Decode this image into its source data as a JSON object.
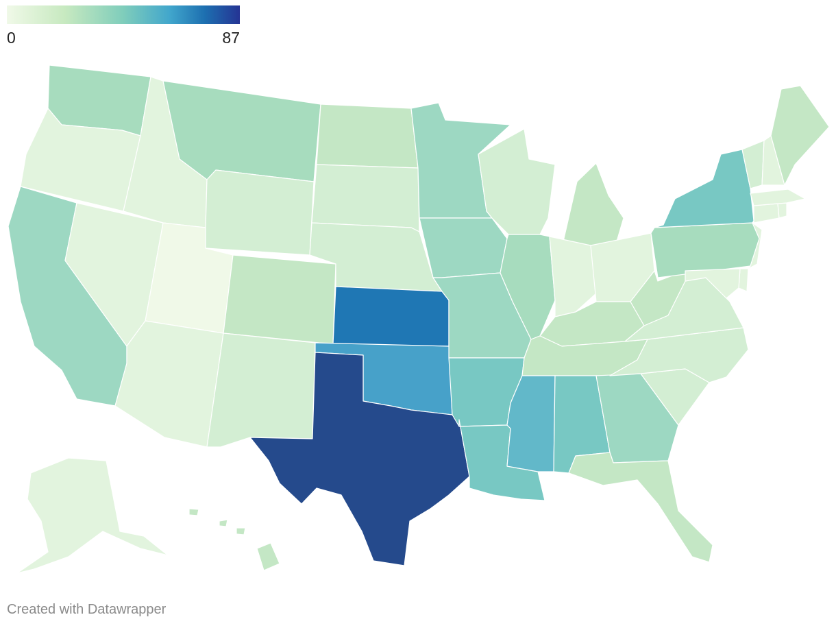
{
  "legend": {
    "min_label": "0",
    "max_label": "87"
  },
  "credit": "Created with Datawrapper",
  "colors": {
    "c1": "#f0f9e8",
    "c2": "#e2f4de",
    "c3": "#d3eed3",
    "c4": "#c4e7c5",
    "c5": "#a7dcbe",
    "c6": "#9dd8c2",
    "c7": "#78c8c3",
    "c8": "#62b8c9",
    "c9": "#47a1c9",
    "c10": "#1f77b4",
    "c11": "#254a8c",
    "border": "#ffffff"
  },
  "states": [
    {
      "name": "WA",
      "color_key": "c5"
    },
    {
      "name": "OR",
      "color_key": "c2"
    },
    {
      "name": "CA",
      "color_key": "c6"
    },
    {
      "name": "NV",
      "color_key": "c2"
    },
    {
      "name": "ID",
      "color_key": "c2"
    },
    {
      "name": "MT",
      "color_key": "c5"
    },
    {
      "name": "WY",
      "color_key": "c3"
    },
    {
      "name": "UT",
      "color_key": "c1"
    },
    {
      "name": "AZ",
      "color_key": "c2"
    },
    {
      "name": "CO",
      "color_key": "c4"
    },
    {
      "name": "NM",
      "color_key": "c3"
    },
    {
      "name": "ND",
      "color_key": "c4"
    },
    {
      "name": "SD",
      "color_key": "c3"
    },
    {
      "name": "NE",
      "color_key": "c3"
    },
    {
      "name": "KS",
      "color_key": "c10"
    },
    {
      "name": "OK",
      "color_key": "c9"
    },
    {
      "name": "TX",
      "color_key": "c11"
    },
    {
      "name": "MN",
      "color_key": "c6"
    },
    {
      "name": "IA",
      "color_key": "c6"
    },
    {
      "name": "MO",
      "color_key": "c6"
    },
    {
      "name": "AR",
      "color_key": "c7"
    },
    {
      "name": "LA",
      "color_key": "c7"
    },
    {
      "name": "WI",
      "color_key": "c3"
    },
    {
      "name": "IL",
      "color_key": "c5"
    },
    {
      "name": "MI",
      "color_key": "c4"
    },
    {
      "name": "IN",
      "color_key": "c2"
    },
    {
      "name": "OH",
      "color_key": "c2"
    },
    {
      "name": "KY",
      "color_key": "c4"
    },
    {
      "name": "TN",
      "color_key": "c4"
    },
    {
      "name": "MS",
      "color_key": "c8"
    },
    {
      "name": "AL",
      "color_key": "c7"
    },
    {
      "name": "GA",
      "color_key": "c6"
    },
    {
      "name": "FL",
      "color_key": "c4"
    },
    {
      "name": "SC",
      "color_key": "c3"
    },
    {
      "name": "NC",
      "color_key": "c3"
    },
    {
      "name": "VA",
      "color_key": "c3"
    },
    {
      "name": "WV",
      "color_key": "c4"
    },
    {
      "name": "PA",
      "color_key": "c5"
    },
    {
      "name": "NY",
      "color_key": "c7"
    },
    {
      "name": "NJ",
      "color_key": "c2"
    },
    {
      "name": "DE",
      "color_key": "c2"
    },
    {
      "name": "MD",
      "color_key": "c2"
    },
    {
      "name": "CT",
      "color_key": "c2"
    },
    {
      "name": "RI",
      "color_key": "c2"
    },
    {
      "name": "MA",
      "color_key": "c2"
    },
    {
      "name": "VT",
      "color_key": "c3"
    },
    {
      "name": "NH",
      "color_key": "c2"
    },
    {
      "name": "ME",
      "color_key": "c4"
    },
    {
      "name": "AK",
      "color_key": "c2"
    },
    {
      "name": "HI",
      "color_key": "c4"
    }
  ]
}
